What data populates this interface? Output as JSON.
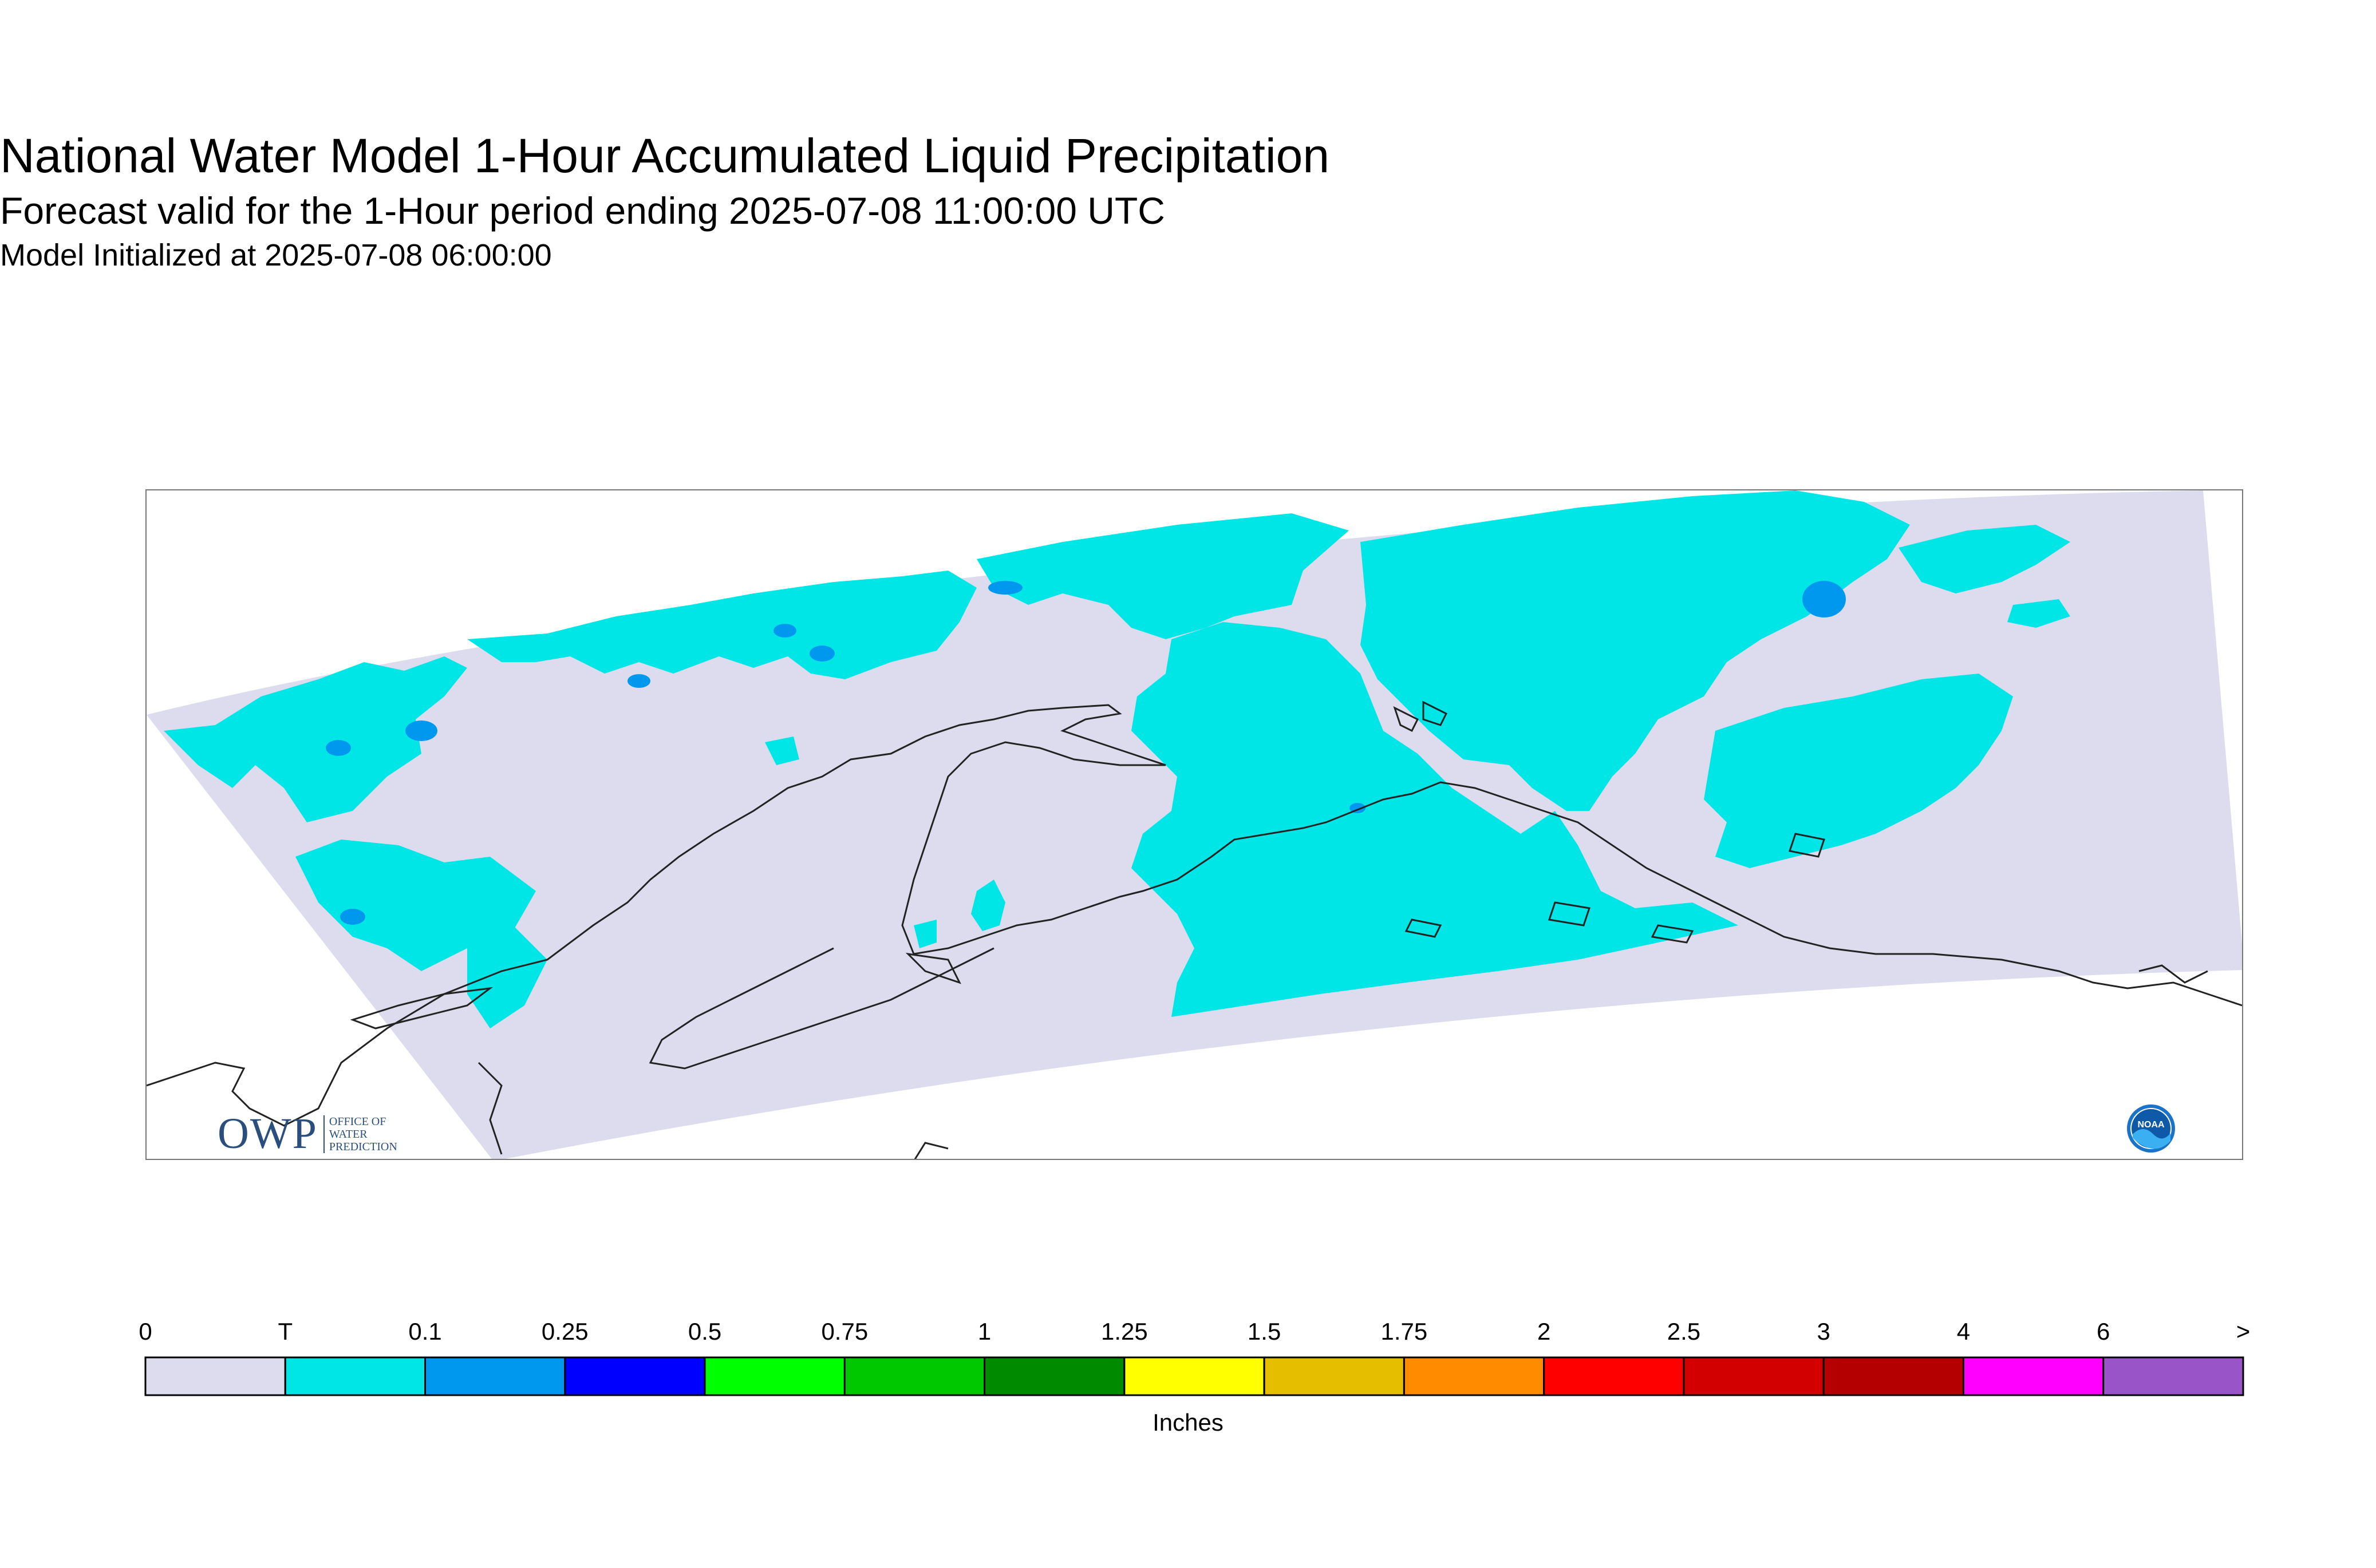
{
  "title": {
    "line1": "National Water Model 1-Hour Accumulated Liquid Precipitation",
    "line2": "Forecast valid for the 1-Hour period ending 2025-07-08 11:00:00 UTC",
    "line3": "Model Initialized at 2025-07-08 06:00:00"
  },
  "logos": {
    "owp_mark": "OWP",
    "owp_lines": [
      "OFFICE OF",
      "WATER",
      "PREDICTION"
    ],
    "noaa": "NOAA"
  },
  "legend": {
    "units": "Inches",
    "ticks": [
      "0",
      "T",
      "0.1",
      "0.25",
      "0.5",
      "0.75",
      "1",
      "1.25",
      "1.5",
      "1.75",
      "2",
      "2.5",
      "3",
      "4",
      "6",
      ">"
    ],
    "colors": [
      "#dcdcee",
      "#00e5e5",
      "#0098ee",
      "#0000ff",
      "#00ff00",
      "#00c800",
      "#008a00",
      "#ffff00",
      "#e6be00",
      "#ff8c00",
      "#ff0000",
      "#d20000",
      "#b40000",
      "#ff00ff",
      "#9955c8"
    ]
  },
  "map": {
    "background_color": "#dcdcee",
    "precip_color": "#00e5e5",
    "heavier_color": "#0098ee",
    "coastline_color": "#222222"
  }
}
